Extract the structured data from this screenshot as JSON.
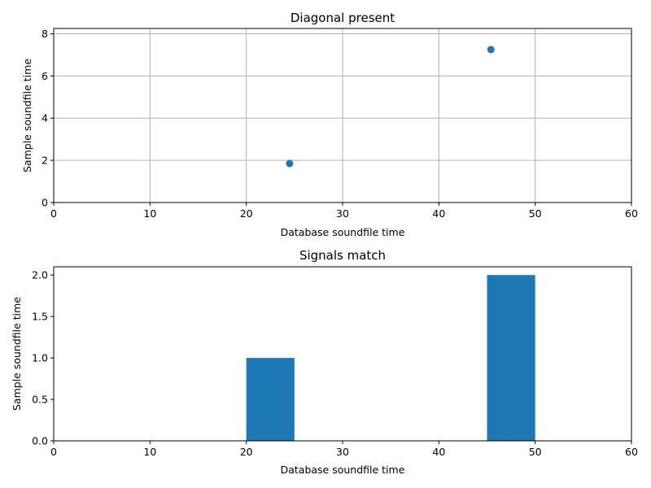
{
  "chart_data": [
    {
      "type": "scatter",
      "title": "Diagonal present",
      "xlabel": "Database soundfile time",
      "ylabel": "Sample soundfile time",
      "xlim": [
        0,
        60
      ],
      "ylim": [
        0,
        8.25
      ],
      "xticks": [
        0,
        10,
        20,
        30,
        40,
        50,
        60
      ],
      "yticks": [
        0,
        2,
        4,
        6,
        8
      ],
      "grid": true,
      "color": "#1f77b4",
      "points": [
        {
          "x": 24.5,
          "y": 1.85
        },
        {
          "x": 45.4,
          "y": 7.25
        }
      ]
    },
    {
      "type": "bar",
      "title": "Signals match",
      "xlabel": "Database soundfile time",
      "ylabel": "Sample soundfile time",
      "xlim": [
        0,
        60
      ],
      "ylim": [
        0,
        2.1
      ],
      "xticks": [
        0,
        10,
        20,
        30,
        40,
        50,
        60
      ],
      "yticks": [
        "0.0",
        "0.5",
        "1.0",
        "1.5",
        "2.0"
      ],
      "grid": false,
      "color": "#1f77b4",
      "bars": [
        {
          "x0": 0,
          "x1": 5,
          "value": 0
        },
        {
          "x0": 5,
          "x1": 10,
          "value": 0
        },
        {
          "x0": 10,
          "x1": 15,
          "value": 0
        },
        {
          "x0": 15,
          "x1": 20,
          "value": 0
        },
        {
          "x0": 20,
          "x1": 25,
          "value": 1
        },
        {
          "x0": 25,
          "x1": 30,
          "value": 0
        },
        {
          "x0": 30,
          "x1": 35,
          "value": 0
        },
        {
          "x0": 35,
          "x1": 40,
          "value": 0
        },
        {
          "x0": 40,
          "x1": 45,
          "value": 0
        },
        {
          "x0": 45,
          "x1": 50,
          "value": 2
        },
        {
          "x0": 50,
          "x1": 55,
          "value": 0
        },
        {
          "x0": 55,
          "x1": 60,
          "value": 0
        }
      ]
    }
  ]
}
